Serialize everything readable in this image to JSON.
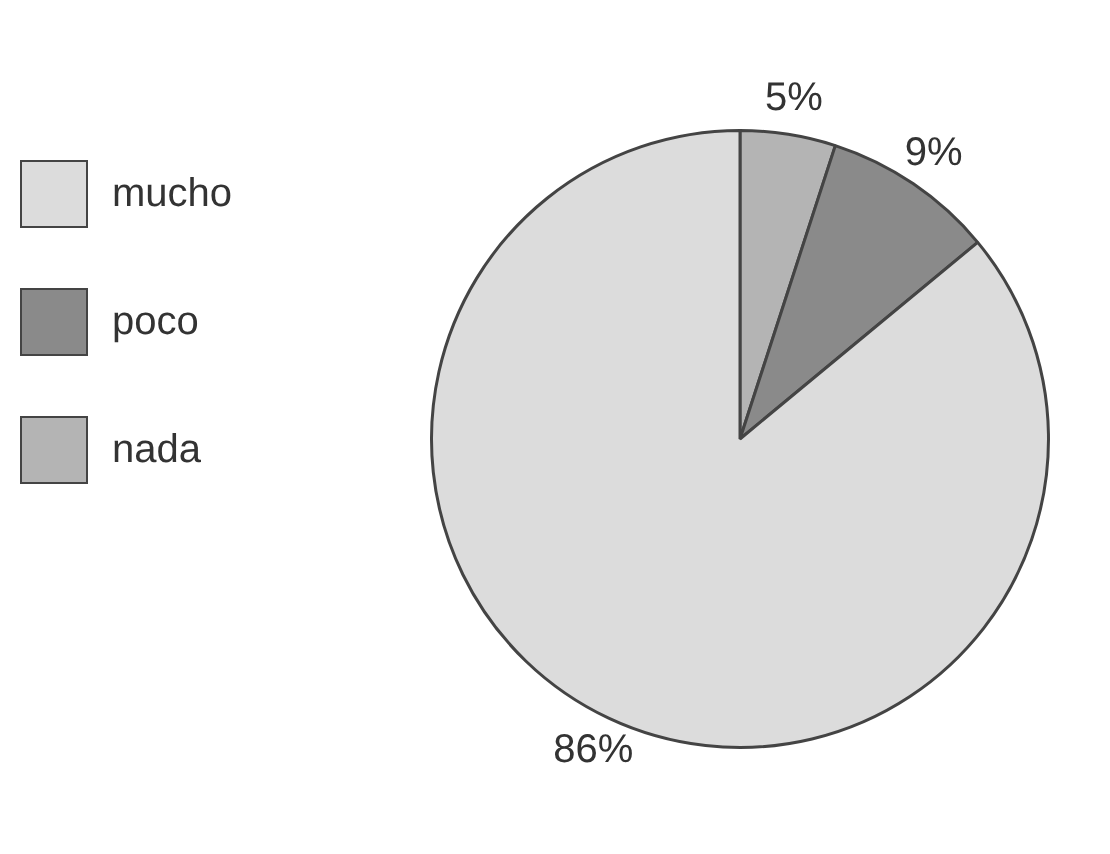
{
  "chart_data": {
    "type": "pie",
    "categories": [
      "mucho",
      "poco",
      "nada"
    ],
    "values": [
      86,
      9,
      5
    ],
    "colors": [
      "#dcdcdc",
      "#8a8a8a",
      "#b4b4b4"
    ],
    "value_labels": [
      "86%",
      "9%",
      "5%"
    ],
    "legend": "left"
  }
}
